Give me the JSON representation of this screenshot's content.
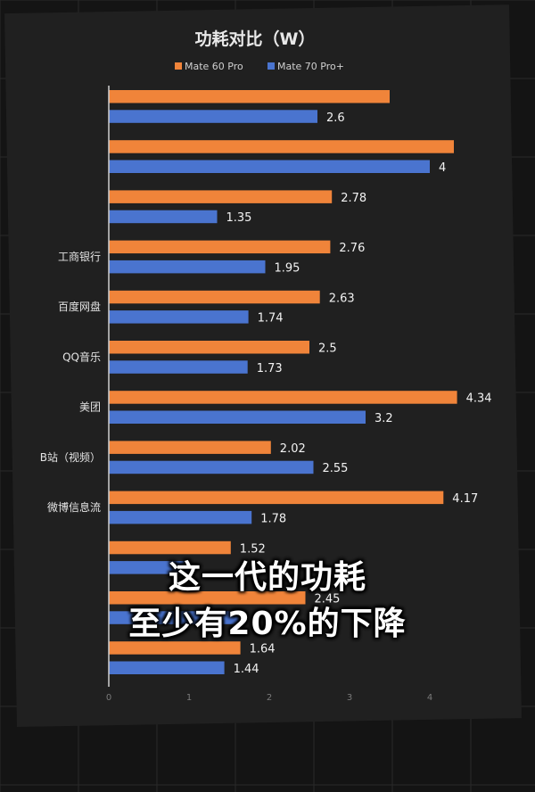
{
  "colors": {
    "background": "#141414",
    "panel": "#202020",
    "series_a": "#f0843a",
    "series_b": "#4a74cf"
  },
  "caption": {
    "line1": "这一代的功耗",
    "line2": "至少有20%的下降"
  },
  "chart_data": {
    "type": "bar",
    "orientation": "horizontal",
    "title": "功耗对比（W）",
    "legend_position": "top",
    "categories": [
      "",
      "",
      "",
      "工商银行",
      "百度网盘",
      "QQ音乐",
      "美团",
      "B站（视频）",
      "微博信息流",
      "",
      "",
      ""
    ],
    "series": [
      {
        "name": "Mate 60 Pro",
        "color": "#f0843a",
        "values": [
          3.5,
          4.3,
          2.78,
          2.76,
          2.63,
          2.5,
          4.34,
          2.02,
          4.17,
          1.52,
          2.45,
          1.64
        ],
        "labels": [
          "",
          "",
          "2.78",
          "2.76",
          "2.63",
          "2.5",
          "4.34",
          "2.02",
          "4.17",
          "1.52",
          "2.45",
          "1.64"
        ]
      },
      {
        "name": "Mate 70 Pro+",
        "color": "#4a74cf",
        "values": [
          2.6,
          4,
          1.35,
          1.95,
          1.74,
          1.73,
          3.2,
          2.55,
          1.78,
          1.0,
          1.7,
          1.44
        ],
        "labels": [
          "2.6",
          "4",
          "1.35",
          "1.95",
          "1.74",
          "1.73",
          "3.2",
          "2.55",
          "1.78",
          "",
          "",
          "1.44"
        ]
      }
    ],
    "xlim": [
      0,
      4.5
    ],
    "xticks": [
      "0",
      "1",
      "2",
      "3",
      "4"
    ],
    "grid": false
  }
}
